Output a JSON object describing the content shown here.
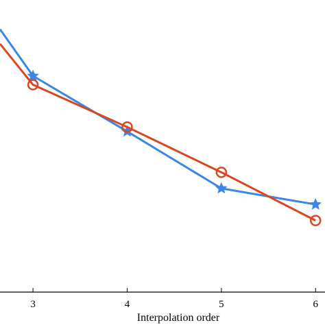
{
  "chart_data": {
    "type": "line",
    "title": "",
    "xlabel": "Interpolation order",
    "ylabel": "",
    "xlim": [
      2.65,
      6.1
    ],
    "ylim": [
      0,
      1
    ],
    "x_ticks": [
      3,
      4,
      5,
      6
    ],
    "x_tick_labels": [
      "3",
      "4",
      "5",
      "6"
    ],
    "grid": false,
    "legend": "none",
    "series": [
      {
        "color": "#3a86e8",
        "marker": "star",
        "x": [
          2.65,
          3,
          4,
          5,
          6
        ],
        "y": [
          0.9,
          0.74,
          0.55,
          0.355,
          0.3
        ]
      },
      {
        "color": "#d9461f",
        "marker": "circle",
        "x": [
          2.65,
          3,
          4,
          5,
          6
        ],
        "y": [
          0.85,
          0.71,
          0.565,
          0.41,
          0.245
        ]
      }
    ]
  }
}
